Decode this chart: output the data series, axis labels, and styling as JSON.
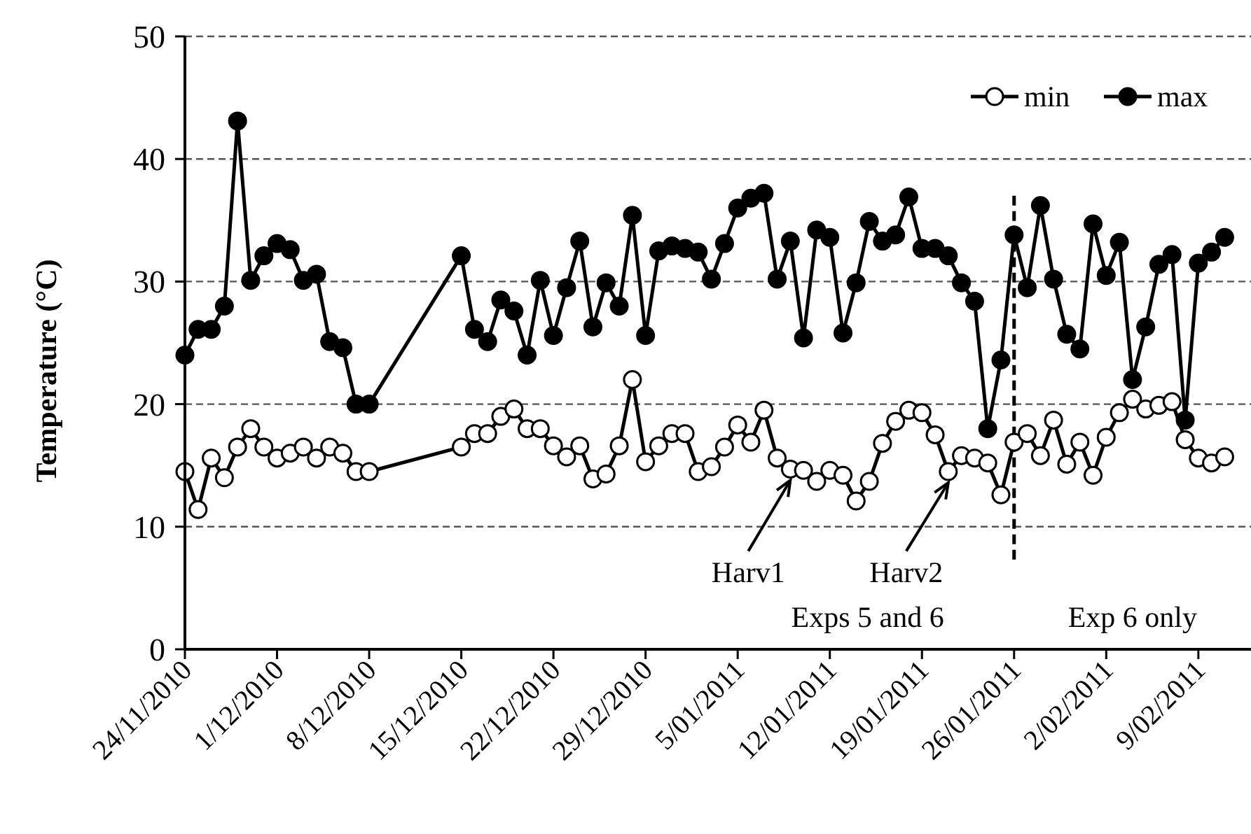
{
  "chart_data": {
    "type": "line",
    "ylabel": "Temperature (°C)",
    "x": [
      "2010-11-24",
      "2010-11-25",
      "2010-11-26",
      "2010-11-27",
      "2010-11-28",
      "2010-11-29",
      "2010-11-30",
      "2010-12-01",
      "2010-12-02",
      "2010-12-03",
      "2010-12-04",
      "2010-12-05",
      "2010-12-06",
      "2010-12-07",
      "2010-12-08",
      "2010-12-15",
      "2010-12-16",
      "2010-12-17",
      "2010-12-18",
      "2010-12-19",
      "2010-12-20",
      "2010-12-21",
      "2010-12-22",
      "2010-12-23",
      "2010-12-24",
      "2010-12-25",
      "2010-12-26",
      "2010-12-27",
      "2010-12-28",
      "2010-12-29",
      "2010-12-30",
      "2010-12-31",
      "2011-01-01",
      "2011-01-02",
      "2011-01-03",
      "2011-01-04",
      "2011-01-05",
      "2011-01-06",
      "2011-01-07",
      "2011-01-08",
      "2011-01-09",
      "2011-01-10",
      "2011-01-11",
      "2011-01-12",
      "2011-01-13",
      "2011-01-14",
      "2011-01-15",
      "2011-01-16",
      "2011-01-17",
      "2011-01-18",
      "2011-01-19",
      "2011-01-20",
      "2011-01-21",
      "2011-01-22",
      "2011-01-23",
      "2011-01-24",
      "2011-01-25",
      "2011-01-26",
      "2011-01-27",
      "2011-01-28",
      "2011-01-29",
      "2011-01-30",
      "2011-01-31",
      "2011-02-01",
      "2011-02-02",
      "2011-02-03",
      "2011-02-04",
      "2011-02-05",
      "2011-02-06",
      "2011-02-07",
      "2011-02-08",
      "2011-02-09",
      "2011-02-10",
      "2011-02-11"
    ],
    "series": [
      {
        "name": "min",
        "color": "#ffffff",
        "values": [
          14.5,
          11.4,
          15.6,
          14.0,
          16.5,
          18.0,
          16.5,
          15.6,
          16.0,
          16.5,
          15.6,
          16.5,
          16.0,
          14.5,
          14.5,
          16.5,
          17.6,
          17.6,
          19.0,
          19.6,
          18.0,
          18.0,
          16.6,
          15.7,
          16.6,
          13.9,
          14.3,
          16.6,
          22.0,
          15.3,
          16.6,
          17.6,
          17.6,
          14.5,
          14.9,
          16.5,
          18.3,
          16.9,
          19.5,
          15.6,
          14.7,
          14.6,
          13.7,
          14.6,
          14.2,
          12.1,
          13.7,
          16.8,
          18.6,
          19.5,
          19.3,
          17.5,
          14.5,
          15.8,
          15.6,
          15.2,
          12.6,
          16.9,
          17.6,
          15.8,
          18.7,
          15.1,
          16.9,
          14.2,
          17.3,
          19.3,
          20.4,
          19.6,
          19.9,
          20.2,
          17.1,
          15.6,
          15.2,
          15.7
        ]
      },
      {
        "name": "max",
        "color": "#000000",
        "values": [
          24.0,
          26.1,
          26.1,
          28.0,
          43.1,
          30.1,
          32.1,
          33.1,
          32.6,
          30.1,
          30.6,
          25.1,
          24.6,
          20.0,
          20.0,
          32.1,
          26.1,
          25.1,
          28.5,
          27.6,
          24.0,
          30.1,
          25.6,
          29.5,
          33.3,
          26.3,
          29.9,
          28.0,
          35.4,
          25.6,
          32.5,
          32.9,
          32.7,
          32.4,
          30.2,
          33.1,
          36.0,
          36.8,
          37.2,
          30.2,
          33.3,
          25.4,
          34.2,
          33.6,
          25.8,
          29.9,
          34.9,
          33.3,
          33.8,
          36.9,
          32.7,
          32.7,
          32.1,
          29.9,
          28.4,
          18.0,
          23.6,
          33.8,
          29.5,
          36.2,
          30.2,
          25.7,
          24.5,
          34.7,
          30.5,
          33.2,
          22.0,
          26.3,
          31.4,
          32.2,
          18.7,
          31.5,
          32.4,
          33.6
        ]
      }
    ],
    "xlim": [
      "2010-11-24",
      "2011-02-13"
    ],
    "xticks": [
      {
        "value": "2010-11-24",
        "label": "24/11/2010"
      },
      {
        "value": "2010-12-01",
        "label": "1/12/2010"
      },
      {
        "value": "2010-12-08",
        "label": "8/12/2010"
      },
      {
        "value": "2010-12-15",
        "label": "15/12/2010"
      },
      {
        "value": "2010-12-22",
        "label": "22/12/2010"
      },
      {
        "value": "2010-12-29",
        "label": "29/12/2010"
      },
      {
        "value": "2011-01-05",
        "label": "5/01/2011"
      },
      {
        "value": "2011-01-12",
        "label": "12/01/2011"
      },
      {
        "value": "2011-01-19",
        "label": "19/01/2011"
      },
      {
        "value": "2011-01-26",
        "label": "26/01/2011"
      },
      {
        "value": "2011-02-02",
        "label": "2/02/2011"
      },
      {
        "value": "2011-02-09",
        "label": "9/02/2011"
      }
    ],
    "ylim": [
      0,
      50
    ],
    "yticks": [
      0,
      10,
      20,
      30,
      40,
      50
    ],
    "grid": "y",
    "legend": "top right",
    "marker": "circle",
    "line_style": "solid",
    "ref_lines": [
      {
        "axis": "x",
        "value": "2011-01-26",
        "line_style": "dashed",
        "color": "#000000"
      }
    ],
    "annotations": [
      {
        "text": "Harv1",
        "x": "2011-01-09",
        "y": 14.7
      },
      {
        "text": "Harv2",
        "x": "2011-01-21",
        "y": 14.5
      },
      "Exps 5 and 6",
      "Exp 6 only"
    ]
  }
}
